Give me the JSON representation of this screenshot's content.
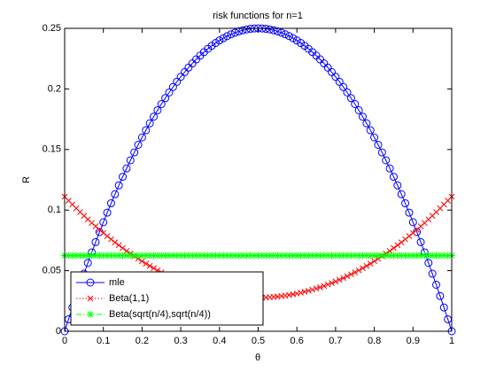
{
  "chart_data": {
    "type": "line",
    "title": "risk functions for n=1",
    "xlabel": "θ",
    "ylabel": "R",
    "x": [
      0,
      0.01,
      0.02,
      0.03,
      0.04,
      0.05,
      0.06,
      0.07,
      0.08,
      0.09,
      0.1,
      0.11,
      0.12,
      0.13,
      0.14,
      0.15,
      0.16,
      0.17,
      0.18,
      0.19,
      0.2,
      0.21,
      0.22,
      0.23,
      0.24,
      0.25,
      0.26,
      0.27,
      0.28,
      0.29,
      0.3,
      0.31,
      0.32,
      0.33,
      0.34,
      0.35,
      0.36,
      0.37,
      0.38,
      0.39,
      0.4,
      0.41,
      0.42,
      0.43,
      0.44,
      0.45,
      0.46,
      0.47,
      0.48,
      0.49,
      0.5,
      0.51,
      0.52,
      0.53,
      0.54,
      0.55,
      0.56,
      0.57,
      0.58,
      0.59,
      0.6,
      0.61,
      0.62,
      0.63,
      0.64,
      0.65,
      0.66,
      0.67,
      0.68,
      0.69,
      0.7,
      0.71,
      0.72,
      0.73,
      0.74,
      0.75,
      0.76,
      0.77,
      0.78,
      0.79,
      0.8,
      0.81,
      0.82,
      0.83,
      0.84,
      0.85,
      0.86,
      0.87,
      0.88,
      0.89,
      0.9,
      0.91,
      0.92,
      0.93,
      0.94,
      0.95,
      0.96,
      0.97,
      0.98,
      0.99,
      1
    ],
    "series": [
      {
        "name": "mle",
        "color": "#0000ff",
        "marker": "o",
        "linestyle": "-",
        "values": [
          0,
          0.0099,
          0.0196,
          0.0291,
          0.0384,
          0.0475,
          0.0564,
          0.0651,
          0.0736,
          0.0819,
          0.09,
          0.0979,
          0.1056,
          0.1131,
          0.1204,
          0.1275,
          0.1344,
          0.1411,
          0.1476,
          0.1539,
          0.16,
          0.1659,
          0.1716,
          0.1771,
          0.1824,
          0.1875,
          0.1924,
          0.1971,
          0.2016,
          0.2059,
          0.21,
          0.2139,
          0.2176,
          0.2211,
          0.2244,
          0.2275,
          0.2304,
          0.2331,
          0.2356,
          0.2379,
          0.24,
          0.2419,
          0.2436,
          0.2451,
          0.2464,
          0.2475,
          0.2484,
          0.2491,
          0.2496,
          0.2499,
          0.25,
          0.2499,
          0.2496,
          0.2491,
          0.2484,
          0.2475,
          0.2464,
          0.2451,
          0.2436,
          0.2419,
          0.24,
          0.2379,
          0.2356,
          0.2331,
          0.2304,
          0.2275,
          0.2244,
          0.2211,
          0.2176,
          0.2139,
          0.21,
          0.2059,
          0.2016,
          0.1971,
          0.1924,
          0.1875,
          0.1824,
          0.1771,
          0.1716,
          0.1659,
          0.16,
          0.1539,
          0.1476,
          0.1411,
          0.1344,
          0.1275,
          0.1204,
          0.1131,
          0.1056,
          0.0979,
          0.09,
          0.0819,
          0.0736,
          0.0651,
          0.0564,
          0.0475,
          0.0384,
          0.0291,
          0.0196,
          0.0099,
          0
        ]
      },
      {
        "name": "Beta(1,1)",
        "color": "#ff0000",
        "marker": "x",
        "linestyle": ":",
        "values": [
          0.1111,
          0.1078,
          0.1046,
          0.1014,
          0.0983,
          0.0953,
          0.0923,
          0.0894,
          0.0866,
          0.0838,
          0.0811,
          0.0785,
          0.0759,
          0.0734,
          0.071,
          0.0686,
          0.0663,
          0.0641,
          0.0619,
          0.0598,
          0.0578,
          0.0558,
          0.0539,
          0.0521,
          0.0503,
          0.0486,
          0.047,
          0.0454,
          0.0439,
          0.0425,
          0.0411,
          0.0398,
          0.0386,
          0.0374,
          0.0363,
          0.0353,
          0.0343,
          0.0334,
          0.0326,
          0.0318,
          0.0311,
          0.0305,
          0.0299,
          0.0294,
          0.029,
          0.0286,
          0.0283,
          0.0281,
          0.0279,
          0.0278,
          0.0278,
          0.0278,
          0.0279,
          0.0281,
          0.0283,
          0.0286,
          0.029,
          0.0294,
          0.0299,
          0.0305,
          0.0311,
          0.0318,
          0.0326,
          0.0334,
          0.0343,
          0.0353,
          0.0363,
          0.0374,
          0.0386,
          0.0398,
          0.0411,
          0.0425,
          0.0439,
          0.0454,
          0.047,
          0.0486,
          0.0503,
          0.0521,
          0.0539,
          0.0558,
          0.0578,
          0.0598,
          0.0619,
          0.0641,
          0.0663,
          0.0686,
          0.071,
          0.0734,
          0.0759,
          0.0785,
          0.0811,
          0.0838,
          0.0866,
          0.0894,
          0.0923,
          0.0953,
          0.0983,
          0.1014,
          0.1046,
          0.1078,
          0.1111
        ]
      },
      {
        "name": "Beta(sqrt(n/4),sqrt(n/4))",
        "color": "#00ff00",
        "marker": "*",
        "linestyle": "-.",
        "values": [
          0.0625,
          0.0625,
          0.0625,
          0.0625,
          0.0625,
          0.0625,
          0.0625,
          0.0625,
          0.0625,
          0.0625,
          0.0625,
          0.0625,
          0.0625,
          0.0625,
          0.0625,
          0.0625,
          0.0625,
          0.0625,
          0.0625,
          0.0625,
          0.0625,
          0.0625,
          0.0625,
          0.0625,
          0.0625,
          0.0625,
          0.0625,
          0.0625,
          0.0625,
          0.0625,
          0.0625,
          0.0625,
          0.0625,
          0.0625,
          0.0625,
          0.0625,
          0.0625,
          0.0625,
          0.0625,
          0.0625,
          0.0625,
          0.0625,
          0.0625,
          0.0625,
          0.0625,
          0.0625,
          0.0625,
          0.0625,
          0.0625,
          0.0625,
          0.0625,
          0.0625,
          0.0625,
          0.0625,
          0.0625,
          0.0625,
          0.0625,
          0.0625,
          0.0625,
          0.0625,
          0.0625,
          0.0625,
          0.0625,
          0.0625,
          0.0625,
          0.0625,
          0.0625,
          0.0625,
          0.0625,
          0.0625,
          0.0625,
          0.0625,
          0.0625,
          0.0625,
          0.0625,
          0.0625,
          0.0625,
          0.0625,
          0.0625,
          0.0625,
          0.0625,
          0.0625,
          0.0625,
          0.0625,
          0.0625,
          0.0625,
          0.0625,
          0.0625,
          0.0625,
          0.0625,
          0.0625,
          0.0625,
          0.0625,
          0.0625,
          0.0625,
          0.0625,
          0.0625,
          0.0625,
          0.0625,
          0.0625,
          0.0625
        ]
      }
    ],
    "xlim": [
      0,
      1
    ],
    "xticks": [
      0,
      0.1,
      0.2,
      0.3,
      0.4,
      0.5,
      0.6,
      0.7,
      0.8,
      0.9,
      1
    ],
    "ylim": [
      0,
      0.25
    ],
    "yticks": [
      0,
      0.05,
      0.1,
      0.15,
      0.2,
      0.25
    ],
    "grid": false,
    "legend": "bottom-left"
  }
}
